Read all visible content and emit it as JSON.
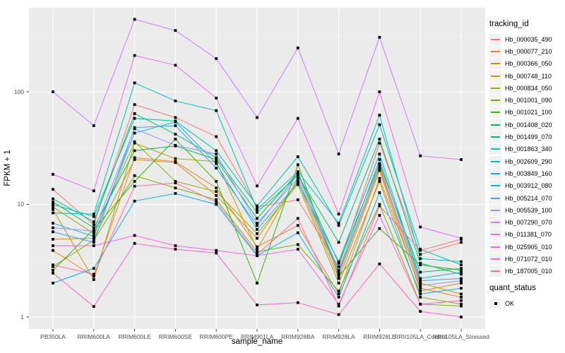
{
  "chart_data": {
    "type": "line",
    "title": "",
    "xlabel": "sample_name",
    "ylabel": "FPKM + 1",
    "yscale": "log10",
    "ylim": [
      1,
      550
    ],
    "grid": true,
    "panel_bg": "#EBEBEB",
    "grid_major_color": "#FFFFFF",
    "grid_minor_color": "#F7F7F7",
    "point_color": "#000000",
    "tick_label_color": "#4D4D4D",
    "y_ticks": [
      1,
      10,
      100
    ],
    "y_tick_labels": [
      "1",
      "10",
      "100"
    ],
    "y_minor": [
      3.1623,
      31.623,
      316.23
    ],
    "x": [
      "PB350LA",
      "RRIM600LA",
      "RRIM600LE",
      "RRIM600SE",
      "RRIM600PE",
      "RRIM901LA",
      "RRIM928BA",
      "RRIM928LA",
      "RRIM928LE",
      "RRII105LA_Control",
      "RRII105LA_Stressed"
    ],
    "legend_title": "tracking_id",
    "point_legend": {
      "title": "quant_status",
      "label": "OK"
    },
    "series": [
      {
        "name": "Hb_000035_490",
        "color": "#F8766D",
        "values": [
          13.6,
          6.6,
          77,
          59,
          40,
          9.5,
          11,
          2.8,
          35,
          3.6,
          4.6
        ]
      },
      {
        "name": "Hb_000077_210",
        "color": "#EA8331",
        "values": [
          3.9,
          2.3,
          26,
          24,
          14,
          4.2,
          6.5,
          1.6,
          17,
          1.8,
          1.5
        ]
      },
      {
        "name": "Hb_000366_050",
        "color": "#D89000",
        "values": [
          4.9,
          5.0,
          25,
          23.5,
          12,
          5.0,
          16,
          2.2,
          20,
          1.7,
          2.0
        ]
      },
      {
        "name": "Hb_000748_110",
        "color": "#C09B00",
        "values": [
          9.0,
          2.15,
          35,
          25.5,
          24,
          4.0,
          17,
          2.5,
          22,
          2.0,
          1.6
        ]
      },
      {
        "name": "Hb_000834_050",
        "color": "#A3A500",
        "values": [
          9.5,
          5.5,
          36,
          16,
          13,
          5.5,
          15,
          2.0,
          16,
          1.5,
          1.3
        ]
      },
      {
        "name": "Hb_001001_090",
        "color": "#7CAE00",
        "values": [
          2.8,
          4.8,
          18,
          14,
          11,
          3.8,
          4.4,
          1.7,
          10,
          1.3,
          1.25
        ]
      },
      {
        "name": "Hb_001021_100",
        "color": "#39B600",
        "values": [
          2.6,
          6.0,
          16,
          38,
          16,
          2.0,
          22.5,
          2.3,
          6.1,
          2.9,
          2.6
        ]
      },
      {
        "name": "Hb_001408_020",
        "color": "#00BB4E",
        "values": [
          10.5,
          6.2,
          30,
          33,
          25,
          7.5,
          19,
          3.0,
          23,
          2.5,
          2.7
        ]
      },
      {
        "name": "Hb_001499_070",
        "color": "#00BF7D",
        "values": [
          11.2,
          7.0,
          64,
          42,
          26,
          8.5,
          18,
          4.6,
          38,
          3.0,
          2.4
        ]
      },
      {
        "name": "Hb_001863_340",
        "color": "#00C1A3",
        "values": [
          10.0,
          7.8,
          58,
          55,
          30,
          9.7,
          26.5,
          6.5,
          51,
          4.0,
          2.9
        ]
      },
      {
        "name": "Hb_002609_290",
        "color": "#00BFC4",
        "values": [
          8.4,
          8.2,
          120,
          83,
          68,
          9.0,
          19.5,
          6.8,
          62,
          3.3,
          3.1
        ]
      },
      {
        "name": "Hb_003849_160",
        "color": "#00BAE0",
        "values": [
          6.8,
          5.2,
          43,
          54,
          23,
          6.0,
          15.5,
          3.1,
          28,
          2.2,
          2.5
        ]
      },
      {
        "name": "Hb_003912_080",
        "color": "#00B0F6",
        "values": [
          2.0,
          2.7,
          10.7,
          12.5,
          10,
          3.5,
          5.6,
          1.5,
          12.7,
          1.6,
          1.8
        ]
      },
      {
        "name": "Hb_005214_070",
        "color": "#35A2FF",
        "values": [
          5.7,
          4.6,
          48,
          50,
          21,
          6.5,
          18.5,
          2.6,
          25,
          2.1,
          2.2
        ]
      },
      {
        "name": "Hb_005539_100",
        "color": "#9590FF",
        "values": [
          6.2,
          5.8,
          47,
          33.5,
          28,
          6.8,
          17,
          2.4,
          21,
          1.9,
          2.1
        ]
      },
      {
        "name": "Hb_007290_070",
        "color": "#C77CFF",
        "values": [
          100,
          50,
          440,
          350,
          197,
          59,
          245,
          28,
          305,
          27,
          25
        ]
      },
      {
        "name": "Hb_011381_070",
        "color": "#E76BF3",
        "values": [
          18.5,
          13.2,
          210,
          172,
          88,
          14.6,
          58,
          8.2,
          100,
          6.3,
          5.0
        ]
      },
      {
        "name": "Hb_025905_010",
        "color": "#FA62DB",
        "values": [
          4.3,
          4.3,
          5.3,
          4.3,
          3.9,
          3.5,
          4.0,
          1.3,
          8.0,
          1.3,
          1.4
        ]
      },
      {
        "name": "Hb_071072_010",
        "color": "#FF62BC",
        "values": [
          2.45,
          1.24,
          4.5,
          4.0,
          3.7,
          1.28,
          1.34,
          1.05,
          2.96,
          1.12,
          1.0
        ]
      },
      {
        "name": "Hb_187005_010",
        "color": "#FF6A98",
        "values": [
          2.9,
          2.4,
          14.5,
          15.5,
          10.5,
          3.6,
          7.5,
          1.25,
          9.7,
          3.9,
          4.9
        ]
      }
    ]
  }
}
